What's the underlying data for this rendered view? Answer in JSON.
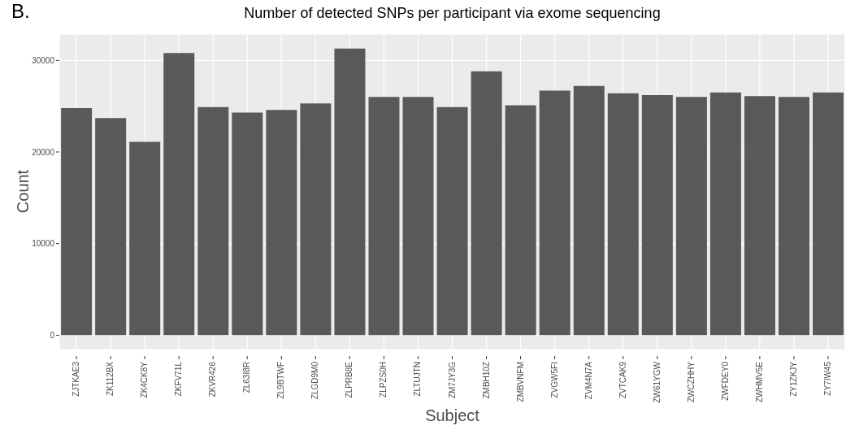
{
  "chart_data": {
    "type": "bar",
    "title": "Number of detected SNPs per participant via exome sequencing",
    "annotations": [
      "B."
    ],
    "xlabel": "Subject",
    "ylabel": "Count",
    "categories": [
      "ZJTKAE3",
      "ZK112BX",
      "ZK4CK8Y",
      "ZKFV71L",
      "ZKVR426",
      "ZL63I8R",
      "ZL9BTWF",
      "ZLGD9M0",
      "ZLPRB8E",
      "ZLPZS0H",
      "ZLTUJTN",
      "ZM7JY3G",
      "ZMBH10Z",
      "ZMBVNFM",
      "ZVGW5FI",
      "ZVM4N7A",
      "ZVTCAK9",
      "ZW61YGW",
      "ZWCZHHY",
      "ZWFDEY0",
      "ZWHMV5E",
      "ZY1ZKJY",
      "ZY7IW45"
    ],
    "values": [
      24800,
      23700,
      21100,
      30800,
      24900,
      24300,
      24600,
      25300,
      31300,
      26000,
      26000,
      24900,
      28800,
      25100,
      26700,
      27200,
      26400,
      26200,
      26000,
      26500,
      26100,
      26000,
      26500
    ],
    "color": "#595959",
    "ylim": [
      -1565,
      32865
    ],
    "yticks": [
      0,
      10000,
      20000,
      30000
    ],
    "grid": true
  }
}
